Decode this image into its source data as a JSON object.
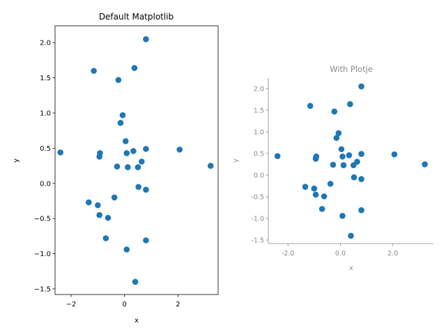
{
  "chart_data": [
    {
      "type": "scatter",
      "title": "Default Matplotlib",
      "xlabel": "x",
      "ylabel": "y",
      "xlim": [
        -2.6,
        3.5
      ],
      "ylim": [
        -1.58,
        2.24
      ],
      "xticks": [
        -2,
        0,
        2
      ],
      "xtick_labels": [
        "−2",
        "0",
        "2"
      ],
      "yticks": [
        -1.5,
        -1.0,
        -0.5,
        0.0,
        0.5,
        1.0,
        1.5,
        2.0
      ],
      "ytick_labels": [
        "−1.5",
        "−1.0",
        "−0.5",
        "0.0",
        "0.5",
        "1.0",
        "1.5",
        "2.0"
      ],
      "grid": false,
      "color": "#1f77b4",
      "series": [
        {
          "x": [
            0.8,
            -1.15,
            0.37,
            -0.23,
            -0.07,
            -0.15,
            0.04,
            2.06,
            0.8,
            0.08,
            0.33,
            -0.92,
            -0.94,
            0.64,
            -0.28,
            0.12,
            0.5,
            3.22,
            -2.4,
            0.52,
            0.8,
            -1.34,
            -0.38,
            -1.0,
            -0.94,
            -0.62,
            -0.7,
            0.08,
            0.8,
            0.4
          ],
          "y": [
            2.05,
            1.6,
            1.64,
            1.47,
            0.97,
            0.86,
            0.6,
            0.48,
            0.49,
            0.43,
            0.46,
            0.43,
            0.38,
            0.31,
            0.24,
            0.23,
            0.23,
            0.25,
            0.44,
            -0.05,
            -0.09,
            -0.27,
            -0.2,
            -0.31,
            -0.45,
            -0.49,
            -0.78,
            -0.94,
            -0.81,
            -1.4
          ]
        }
      ]
    },
    {
      "type": "scatter",
      "title": "With Plotje",
      "xlabel": "x",
      "ylabel": "y",
      "xlim": [
        -2.75,
        3.55
      ],
      "ylim": [
        -1.58,
        2.24
      ],
      "xticks": [
        -2,
        0,
        2
      ],
      "xtick_labels": [
        "-2.0",
        "0.0",
        "2.0"
      ],
      "yticks": [
        -1.5,
        -1.0,
        -0.5,
        0.0,
        0.5,
        1.0,
        1.5,
        2.0
      ],
      "ytick_labels": [
        "-1.5",
        "-1.0",
        "-0.5",
        "0.0",
        "0.5",
        "1.0",
        "1.5",
        "2.0"
      ],
      "grid": false,
      "color": "#1f77b4",
      "series": [
        {
          "x": [
            0.8,
            -1.15,
            0.37,
            -0.23,
            -0.07,
            -0.15,
            0.04,
            2.06,
            0.8,
            0.08,
            0.33,
            -0.92,
            -0.94,
            0.64,
            -0.28,
            0.12,
            0.5,
            3.22,
            -2.4,
            0.52,
            0.8,
            -1.34,
            -0.38,
            -1.0,
            -0.94,
            -0.62,
            -0.7,
            0.08,
            0.8,
            0.4
          ],
          "y": [
            2.05,
            1.6,
            1.64,
            1.47,
            0.97,
            0.86,
            0.6,
            0.48,
            0.49,
            0.43,
            0.46,
            0.43,
            0.38,
            0.31,
            0.24,
            0.23,
            0.23,
            0.25,
            0.44,
            -0.05,
            -0.09,
            -0.27,
            -0.2,
            -0.31,
            -0.45,
            -0.49,
            -0.78,
            -0.94,
            -0.81,
            -1.4
          ]
        }
      ]
    }
  ]
}
